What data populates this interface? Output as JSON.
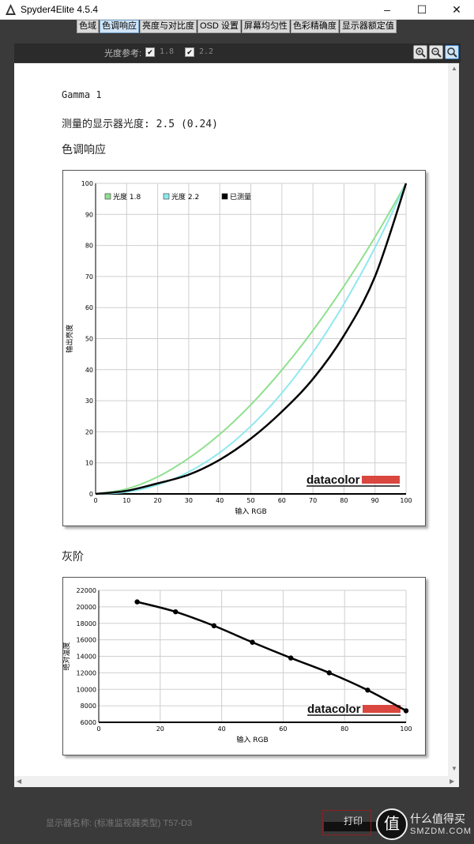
{
  "window": {
    "title": "Spyder4Elite 4.5.4"
  },
  "tabs": [
    {
      "label": "色域",
      "active": false
    },
    {
      "label": "色调响应",
      "active": true
    },
    {
      "label": "亮度与对比度",
      "active": false
    },
    {
      "label": "OSD 设置",
      "active": false
    },
    {
      "label": "屏幕均匀性",
      "active": false
    },
    {
      "label": "色彩精确度",
      "active": false
    },
    {
      "label": "显示器额定值",
      "active": false
    }
  ],
  "toolbar": {
    "gamma_ref_label": "光度参考:",
    "gamma_18": "1.8",
    "gamma_22": "2.2",
    "check_mark": "✔"
  },
  "report": {
    "gamma_line": "Gamma 1",
    "measured_line": "测量的显示器光度: 2.5 (0.24)",
    "tone_title": "色调响应",
    "gray_title": "灰阶"
  },
  "chart_data": [
    {
      "type": "line",
      "xlabel": "输入 RGB",
      "ylabel": "输出亮度",
      "xlim": [
        0,
        100
      ],
      "ylim": [
        0,
        100
      ],
      "xticks": [
        0,
        10,
        20,
        30,
        40,
        50,
        60,
        70,
        80,
        90,
        100
      ],
      "yticks": [
        0,
        10,
        20,
        30,
        40,
        50,
        60,
        70,
        80,
        90,
        100
      ],
      "grid": true,
      "legend_position": "top-left",
      "watermark": "datacolor",
      "x": [
        0,
        10,
        20,
        30,
        40,
        50,
        60,
        70,
        80,
        90,
        100
      ],
      "series": [
        {
          "name": "光度 1.8",
          "color": "#8fe08f",
          "values": [
            0,
            1.6,
            5.5,
            11.5,
            19.2,
            28.7,
            39.9,
            52.6,
            66.9,
            82.7,
            100
          ]
        },
        {
          "name": "光度 2.2",
          "color": "#8fe8f0",
          "values": [
            0,
            0.6,
            2.9,
            7.1,
            13.3,
            21.8,
            32.5,
            45.6,
            61.2,
            79.3,
            100
          ]
        },
        {
          "name": "已测量",
          "color": "#000000",
          "values": [
            0,
            1.0,
            3.4,
            6.2,
            11.0,
            17.8,
            26.5,
            37.0,
            51.0,
            70.0,
            100
          ]
        }
      ]
    },
    {
      "type": "line",
      "xlabel": "输入 RGB",
      "ylabel": "绝对温度",
      "xlim": [
        0,
        100
      ],
      "ylim": [
        6000,
        22000
      ],
      "xticks": [
        0,
        20,
        40,
        60,
        80,
        100
      ],
      "yticks": [
        6000,
        8000,
        10000,
        12000,
        14000,
        16000,
        18000,
        20000,
        22000
      ],
      "grid": true,
      "watermark": "datacolor",
      "x": [
        12.5,
        25,
        37.5,
        50,
        62.5,
        75,
        87.5,
        100
      ],
      "series": [
        {
          "color": "#000000",
          "values": [
            20600,
            19400,
            17700,
            15700,
            13800,
            12000,
            9900,
            7400
          ]
        }
      ]
    }
  ],
  "footer": {
    "display_name": "显示器名称: (标准监视器类型) T57-D3",
    "print_label": "打印",
    "site_name": "什么值得买",
    "site_domain": "SMZDM.COM",
    "site_glyph": "值"
  },
  "colors": {
    "accent": "#cfe4f7",
    "datacolor_red": "#d9473f"
  }
}
